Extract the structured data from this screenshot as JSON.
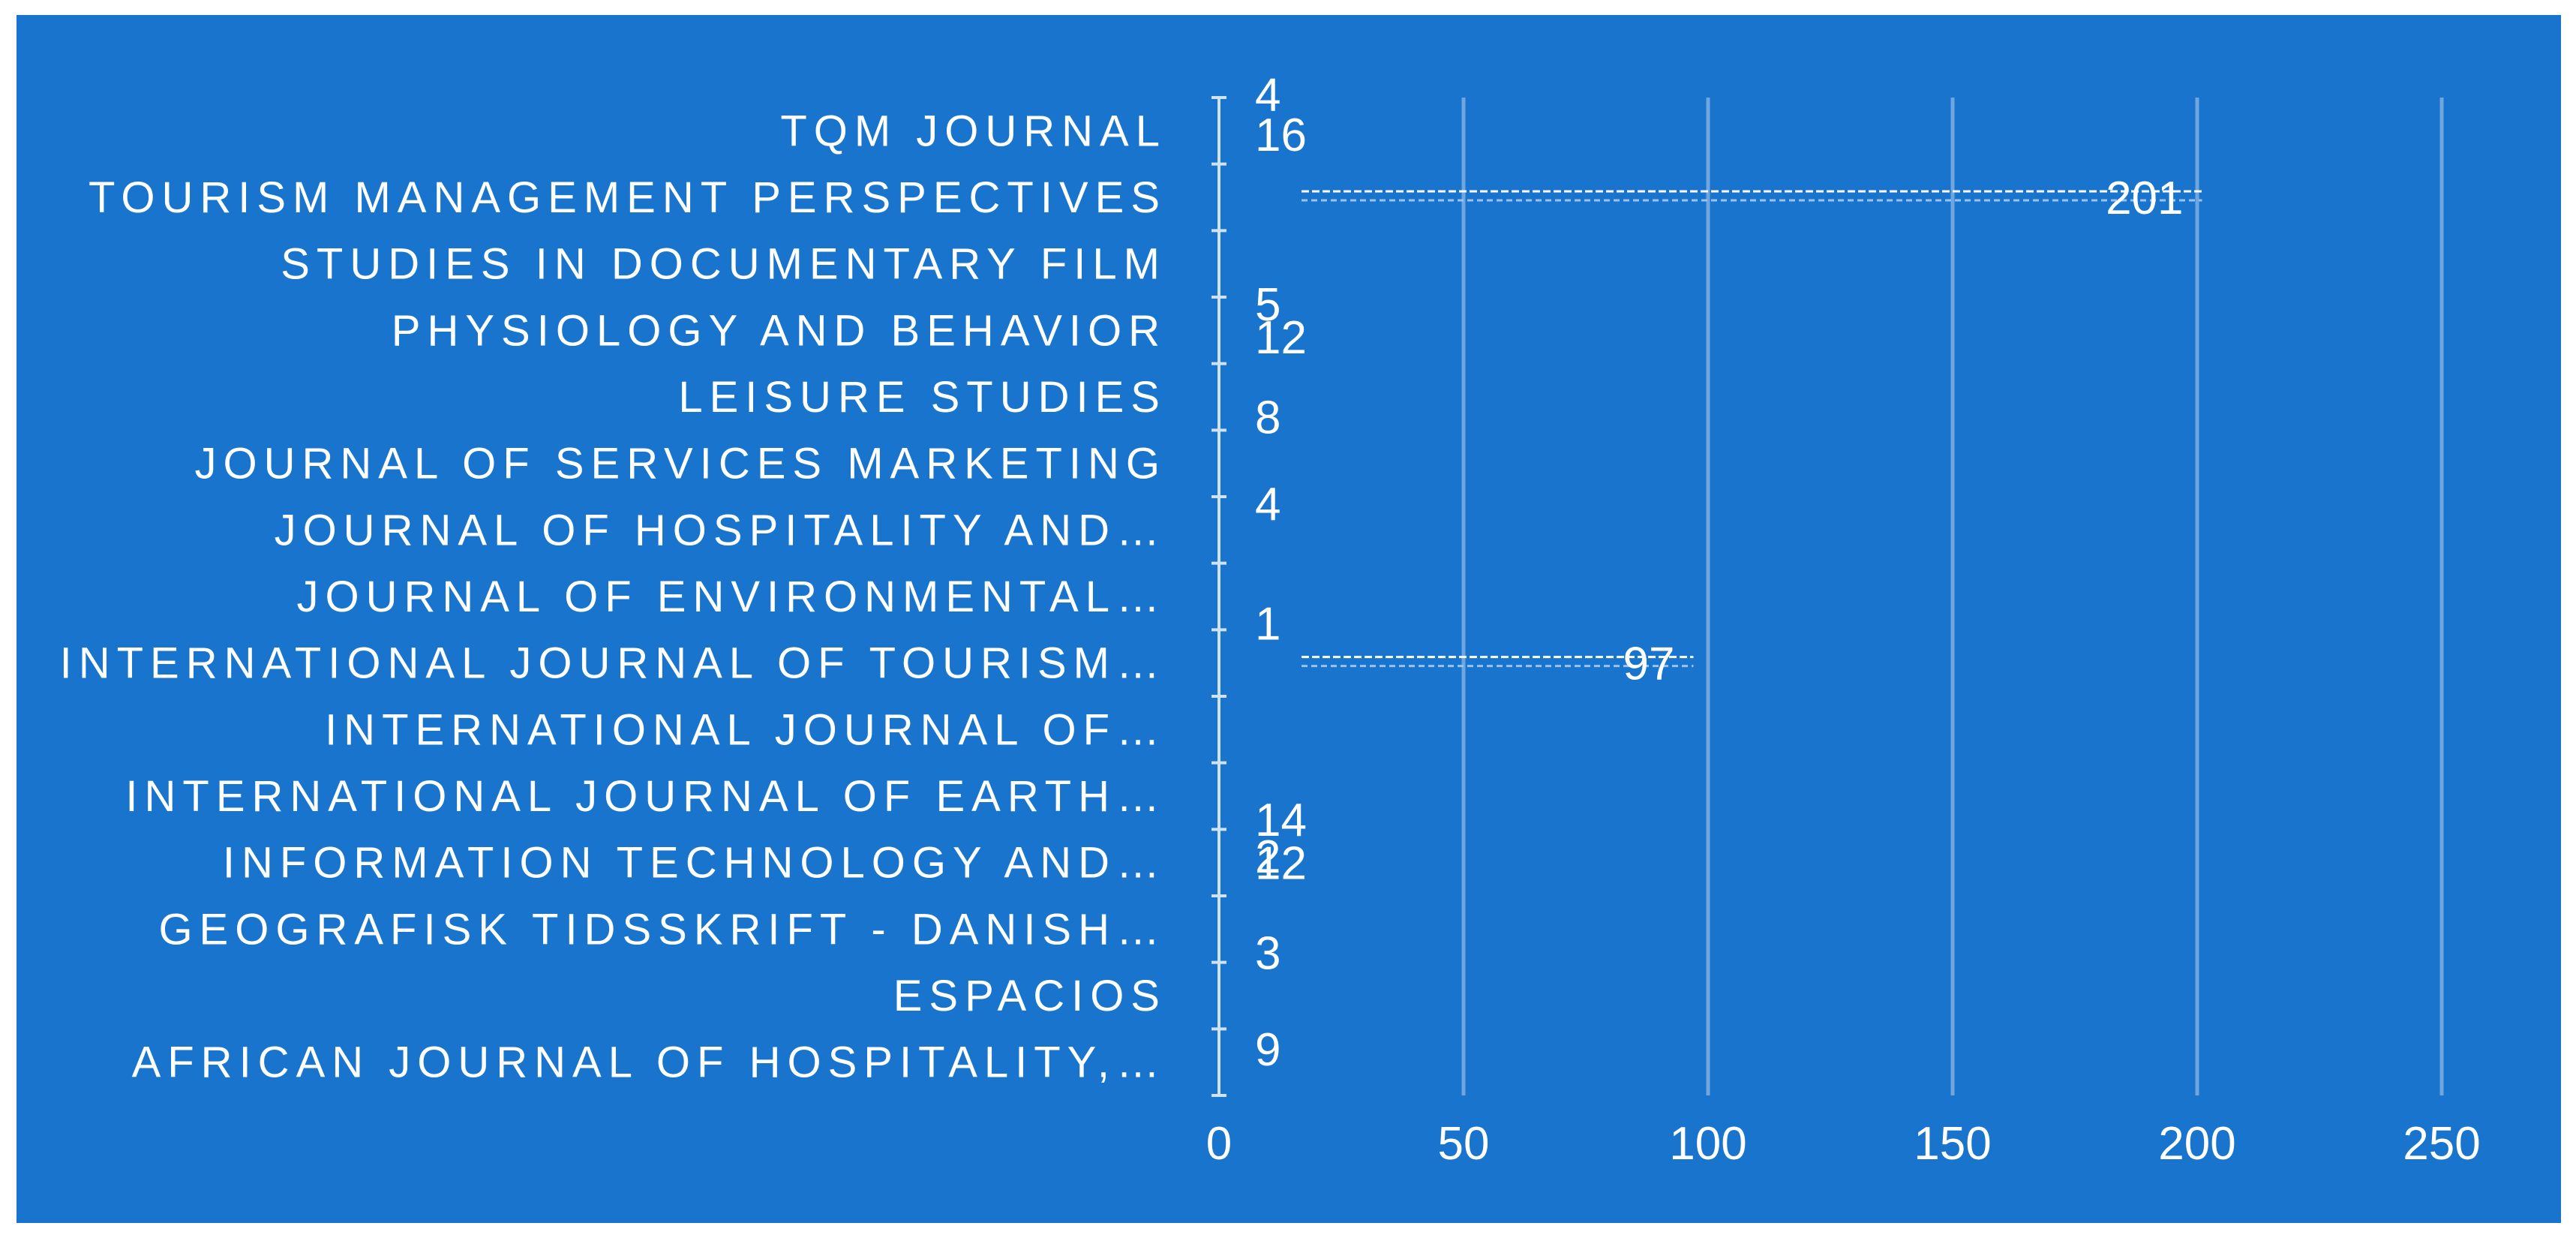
{
  "chart_data": {
    "type": "bar",
    "orientation": "horizontal",
    "background_color": "#1874CD",
    "text_color": "#FFFFFF",
    "gridline_color": "#6FA6E0",
    "grid": true,
    "categories": [
      "TQM JOURNAL",
      "TOURISM MANAGEMENT PERSPECTIVES",
      "STUDIES IN DOCUMENTARY FILM",
      "PHYSIOLOGY AND BEHAVIOR",
      "LEISURE STUDIES",
      "JOURNAL OF SERVICES MARKETING",
      "JOURNAL OF HOSPITALITY AND…",
      "JOURNAL OF ENVIRONMENTAL…",
      "INTERNATIONAL JOURNAL OF TOURISM…",
      "INTERNATIONAL JOURNAL OF…",
      "INTERNATIONAL JOURNAL OF EARTH…",
      "INFORMATION TECHNOLOGY AND…",
      "GEOGRAFISK TIDSSKRIFT - DANISH…",
      "ESPACIOS",
      "AFRICAN JOURNAL OF HOSPITALITY,…"
    ],
    "bars": [
      {
        "category_index": 1,
        "value": 201,
        "label": "201"
      },
      {
        "category_index": 8,
        "value": 97,
        "label": "97"
      }
    ],
    "scattered_value_labels": [
      {
        "text": "4",
        "category_pos": -0.55
      },
      {
        "text": "16",
        "category_pos": 0.05
      },
      {
        "text": "5",
        "category_pos": 2.6
      },
      {
        "text": "12",
        "category_pos": 3.1
      },
      {
        "text": "8",
        "category_pos": 4.3
      },
      {
        "text": "4",
        "category_pos": 5.6
      },
      {
        "text": "1",
        "category_pos": 7.4
      },
      {
        "text": "14",
        "category_pos": 10.35
      },
      {
        "text": "2",
        "category_pos": 10.9
      },
      {
        "text": "12",
        "category_pos": 11.0
      },
      {
        "text": "3",
        "category_pos": 12.35
      },
      {
        "text": "9",
        "category_pos": 13.8
      }
    ],
    "xlim": [
      0,
      250
    ],
    "xticks": [
      0,
      50,
      100,
      150,
      200,
      250
    ],
    "title": "",
    "xlabel": "",
    "ylabel": ""
  }
}
